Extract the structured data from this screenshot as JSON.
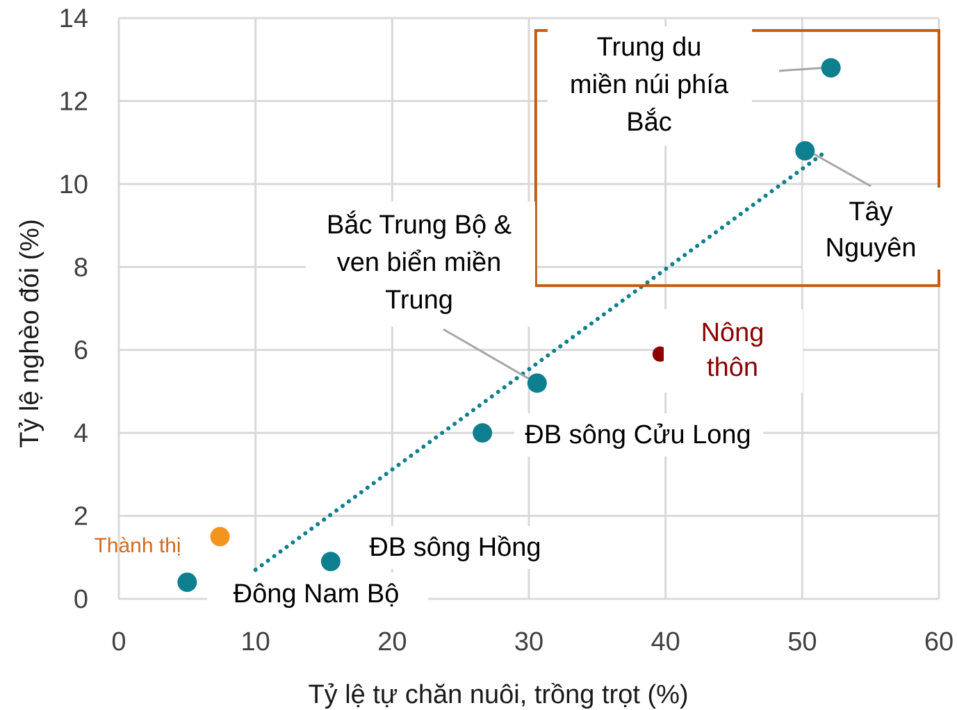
{
  "chart_data": {
    "type": "scatter",
    "xlabel": "Tỷ lệ tự chăn nuôi, trồng trọt (%)",
    "ylabel": "Tỷ lệ nghèo đói (%)",
    "xlim": [
      0,
      60
    ],
    "ylim": [
      0,
      14
    ],
    "xticks": [
      0,
      10,
      20,
      30,
      40,
      50,
      60
    ],
    "yticks": [
      0,
      2,
      4,
      6,
      8,
      10,
      12,
      14
    ],
    "grid": true,
    "trendline": {
      "style": "dotted",
      "color": "#0e7f8e",
      "x": [
        10,
        51.8
      ],
      "y": [
        0.7,
        10.8
      ]
    },
    "colors": {
      "region": "#0e7f8e",
      "urban": "#f5931f",
      "urban_label": "#d2691e",
      "rural": "#8b0000",
      "highlight_box": "#c55a11"
    },
    "points": [
      {
        "label_lines": [
          "Đông Nam Bộ"
        ],
        "x": 5,
        "y": 0.4,
        "group": "region"
      },
      {
        "label_lines": [
          "Thành thị"
        ],
        "x": 7.4,
        "y": 1.5,
        "group": "urban"
      },
      {
        "label_lines": [
          "ĐB sông Hồng"
        ],
        "x": 15.5,
        "y": 0.9,
        "group": "region"
      },
      {
        "label_lines": [
          "ĐB sông Cửu Long"
        ],
        "x": 26.6,
        "y": 4.0,
        "group": "region"
      },
      {
        "label_lines": [
          "Bắc Trung Bộ &",
          "ven biển miền",
          "Trung"
        ],
        "x": 30.6,
        "y": 5.2,
        "group": "region"
      },
      {
        "label_lines": [
          "Nông",
          "thôn"
        ],
        "x": 39.6,
        "y": 5.9,
        "group": "rural"
      },
      {
        "label_lines": [
          "Tây",
          "Nguyên"
        ],
        "x": 50.2,
        "y": 10.8,
        "group": "region"
      },
      {
        "label_lines": [
          "Trung du",
          "miền núi phía",
          "Bắc"
        ],
        "x": 52.1,
        "y": 12.8,
        "group": "region"
      }
    ]
  }
}
